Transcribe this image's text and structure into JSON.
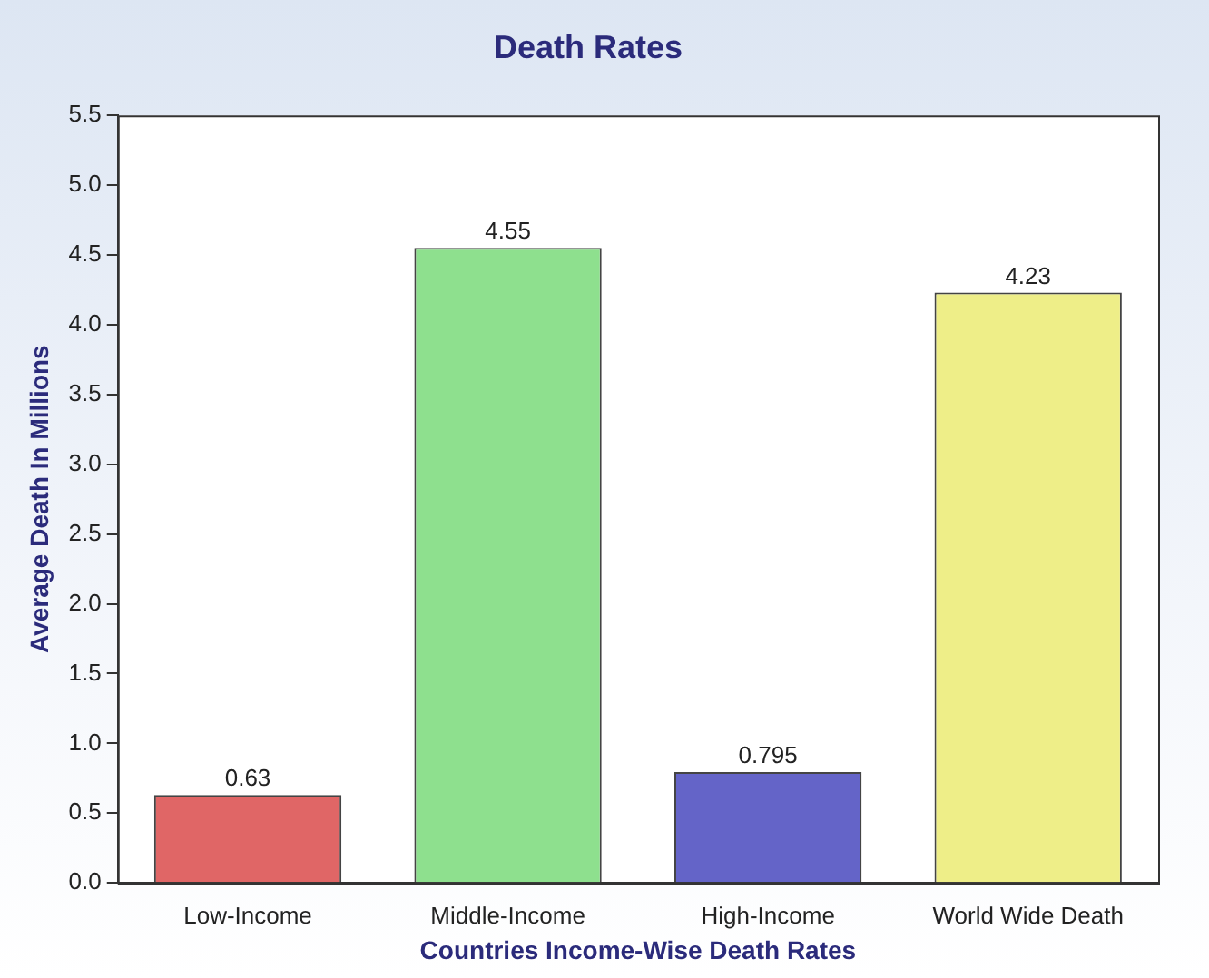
{
  "chart_data": {
    "type": "bar",
    "title": "Death Rates",
    "xlabel": "Countries Income-Wise Death Rates",
    "ylabel": "Average Death In Millions",
    "categories": [
      "Low-Income",
      "Middle-Income",
      "High-Income",
      "World Wide Death"
    ],
    "values": [
      0.63,
      4.55,
      0.795,
      4.23
    ],
    "colors": [
      "#e06666",
      "#8ee08e",
      "#6464c8",
      "#eeee88"
    ],
    "ylim": [
      0,
      5.5
    ],
    "yticks": [
      {
        "value": 0,
        "label": "0.0"
      },
      {
        "value": 0.5,
        "label": "0.5"
      },
      {
        "value": 1,
        "label": "1.0"
      },
      {
        "value": 1.5,
        "label": "1.5"
      },
      {
        "value": 2,
        "label": "2.0"
      },
      {
        "value": 2.5,
        "label": "2.5"
      },
      {
        "value": 3,
        "label": "3.0"
      },
      {
        "value": 3.5,
        "label": "3.5"
      },
      {
        "value": 4,
        "label": "4.0"
      },
      {
        "value": 4.5,
        "label": "4.5"
      },
      {
        "value": 5,
        "label": "5.0"
      },
      {
        "value": 5.5,
        "label": "5.5"
      }
    ],
    "data_labels": true,
    "grid": false,
    "legend": false
  }
}
